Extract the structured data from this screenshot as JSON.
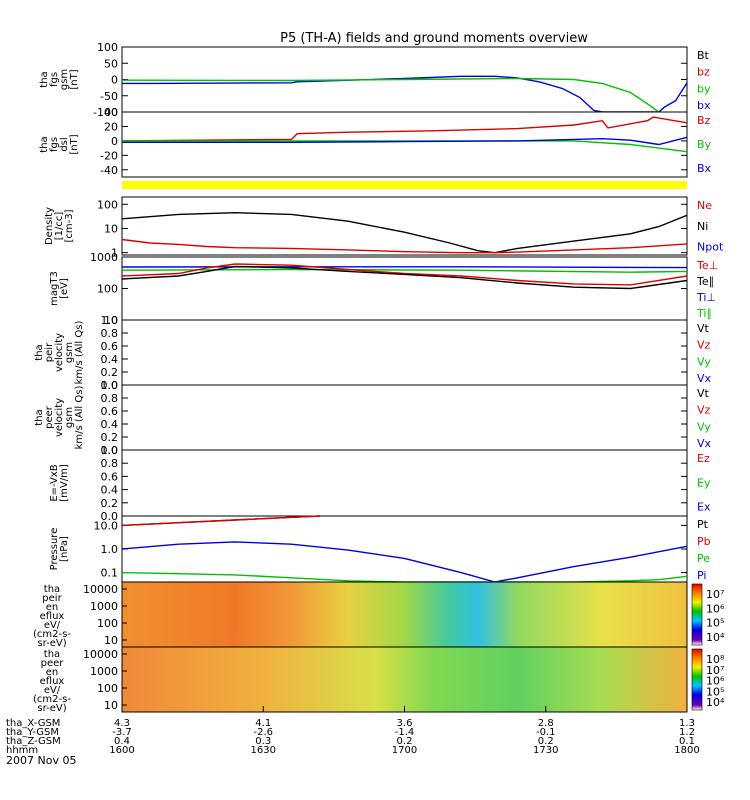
{
  "chart_data": {
    "type": "line",
    "title": "P5 (TH-A) fields and ground moments overview",
    "date": "2007 Nov 05",
    "panels": [
      {
        "id": "fgs_gsm",
        "ylabel": [
          "tha",
          "fgs",
          "gsm",
          "[nT]"
        ],
        "ylim": [
          -100,
          100
        ],
        "yticks": [
          -100,
          -50,
          0,
          50,
          100
        ],
        "legend": [
          {
            "label": "Bt",
            "color": "#000000"
          },
          {
            "label": "bz",
            "color": "#dd0000"
          },
          {
            "label": "by",
            "color": "#00c000"
          },
          {
            "label": "bx",
            "color": "#0000dd"
          }
        ],
        "series": [
          {
            "name": "bx",
            "color": "#0000dd",
            "x": [
              0,
              0.05,
              0.3,
              0.31,
              0.5,
              0.6,
              0.66,
              0.7,
              0.74,
              0.78,
              0.81,
              0.835,
              0.85,
              0.95,
              0.96,
              0.98,
              1.0
            ],
            "y": [
              -12,
              -12,
              -10,
              -7,
              3,
              10,
              10,
              5,
              -8,
              -28,
              -55,
              -95,
              -100,
              -100,
              -85,
              -65,
              -10
            ]
          },
          {
            "name": "by",
            "color": "#00c000",
            "x": [
              0,
              0.3,
              0.5,
              0.7,
              0.8,
              0.85,
              0.9,
              0.93,
              0.95
            ],
            "y": [
              -2,
              -3,
              0,
              3,
              0,
              -12,
              -40,
              -75,
              -100
            ]
          }
        ]
      },
      {
        "id": "fgs_dsl",
        "ylabel": [
          "tha",
          "fgs",
          "dsl",
          "[nT]"
        ],
        "ylim": [
          -50,
          40
        ],
        "yticks": [
          -40,
          -20,
          0,
          20,
          40
        ],
        "legend": [
          {
            "label": "Bz",
            "color": "#dd0000"
          },
          {
            "label": "By",
            "color": "#00c000"
          },
          {
            "label": "Bx",
            "color": "#0000dd"
          }
        ],
        "series": [
          {
            "name": "Bz",
            "color": "#dd0000",
            "x": [
              0,
              0.3,
              0.31,
              0.4,
              0.55,
              0.7,
              0.8,
              0.85,
              0.86,
              0.93,
              0.94,
              1.0
            ],
            "y": [
              0,
              2,
              10,
              12,
              14,
              17,
              22,
              28,
              18,
              28,
              33,
              25
            ]
          },
          {
            "name": "By",
            "color": "#00c000",
            "x": [
              0,
              0.3,
              0.5,
              0.7,
              0.8,
              0.9,
              0.95,
              1.0
            ],
            "y": [
              0,
              0,
              0,
              0,
              0,
              -5,
              -10,
              -15
            ]
          },
          {
            "name": "Bx",
            "color": "#0000dd",
            "x": [
              0,
              0.3,
              0.5,
              0.7,
              0.8,
              0.85,
              0.9,
              0.95,
              1.0
            ],
            "y": [
              -2,
              -2,
              -1,
              0,
              2,
              3,
              1,
              -5,
              5
            ]
          }
        ]
      },
      {
        "id": "density",
        "ylabel": [
          "Density",
          "[1/cc]",
          "[cm-3]"
        ],
        "ylim": [
          0.8,
          200
        ],
        "log": true,
        "ytick_labels": [
          "1",
          "10",
          "100"
        ],
        "ytick_values": [
          1,
          10,
          100
        ],
        "legend": [
          {
            "label": "Ne",
            "color": "#dd0000"
          },
          {
            "label": "Ni",
            "color": "#000000"
          },
          {
            "label": "Npot",
            "color": "#0000dd"
          }
        ],
        "series": [
          {
            "name": "Ni",
            "color": "#000000",
            "x": [
              0,
              0.1,
              0.2,
              0.3,
              0.4,
              0.5,
              0.58,
              0.63,
              0.66,
              0.7,
              0.8,
              0.9,
              0.95,
              1.0
            ],
            "y": [
              25,
              38,
              45,
              38,
              20,
              7,
              2.5,
              1.2,
              1.0,
              1.5,
              3,
              6,
              12,
              35
            ]
          },
          {
            "name": "Ne",
            "color": "#dd0000",
            "x": [
              0,
              0.05,
              0.1,
              0.15,
              0.2,
              0.3,
              0.4,
              0.5,
              0.6,
              0.66,
              0.7,
              0.8,
              0.9,
              1.0
            ],
            "y": [
              3.5,
              2.5,
              2.2,
              1.8,
              1.6,
              1.5,
              1.3,
              1.1,
              1.0,
              1.0,
              1.05,
              1.3,
              1.6,
              2.3
            ]
          }
        ]
      },
      {
        "id": "temperature",
        "ylabel": [
          "magT3",
          "[eV]"
        ],
        "ylim": [
          10,
          1000
        ],
        "log": true,
        "ytick_labels": [
          "10",
          "100",
          "1000"
        ],
        "ytick_values": [
          10,
          100,
          1000
        ],
        "legend": [
          {
            "label": "Te⊥",
            "color": "#dd0000"
          },
          {
            "label": "Te∥",
            "color": "#000000"
          },
          {
            "label": "Ti⊥",
            "color": "#0000dd"
          },
          {
            "label": "Ti∥",
            "color": "#00c000"
          }
        ],
        "series": [
          {
            "name": "Ti⊥",
            "color": "#0000dd",
            "x": [
              0,
              0.3,
              0.6,
              1.0
            ],
            "y": [
              480,
              490,
              490,
              460
            ]
          },
          {
            "name": "Ti∥",
            "color": "#00c000",
            "x": [
              0,
              0.3,
              0.6,
              0.9,
              1.0
            ],
            "y": [
              380,
              400,
              380,
              330,
              350
            ]
          },
          {
            "name": "Te⊥",
            "color": "#dd0000",
            "x": [
              0,
              0.1,
              0.15,
              0.2,
              0.3,
              0.4,
              0.5,
              0.6,
              0.7,
              0.8,
              0.9,
              1.0
            ],
            "y": [
              250,
              300,
              450,
              600,
              550,
              400,
              300,
              250,
              180,
              140,
              130,
              250
            ]
          },
          {
            "name": "Te∥",
            "color": "#000000",
            "x": [
              0,
              0.1,
              0.15,
              0.2,
              0.3,
              0.4,
              0.5,
              0.6,
              0.7,
              0.8,
              0.9,
              1.0
            ],
            "y": [
              200,
              250,
              350,
              500,
              450,
              350,
              280,
              220,
              150,
              110,
              100,
              180
            ]
          }
        ]
      },
      {
        "id": "peir_velocity",
        "ylabel": [
          "tha",
          "peir",
          "velocity",
          "gsm",
          "km/s (All Qs)"
        ],
        "ylim": [
          0,
          1
        ],
        "yticks": [
          0,
          0.2,
          0.4,
          0.6,
          0.8,
          1.0
        ],
        "ytick_labels": [
          "0.0",
          "0.2",
          "0.4",
          "0.6",
          "0.8",
          "1.0"
        ],
        "legend": [
          {
            "label": "Vt",
            "color": "#000000"
          },
          {
            "label": "Vz",
            "color": "#dd0000"
          },
          {
            "label": "Vy",
            "color": "#00c000"
          },
          {
            "label": "Vx",
            "color": "#0000dd"
          }
        ],
        "series": []
      },
      {
        "id": "peer_velocity",
        "ylabel": [
          "tha",
          "peer",
          "velocity",
          "gsm",
          "km/s (All Qs)"
        ],
        "ylim": [
          0,
          1
        ],
        "yticks": [
          0,
          0.2,
          0.4,
          0.6,
          0.8,
          1.0
        ],
        "ytick_labels": [
          "0.0",
          "0.2",
          "0.4",
          "0.6",
          "0.8",
          "1.0"
        ],
        "legend": [
          {
            "label": "Vt",
            "color": "#000000"
          },
          {
            "label": "Vz",
            "color": "#dd0000"
          },
          {
            "label": "Vy",
            "color": "#00c000"
          },
          {
            "label": "Vx",
            "color": "#0000dd"
          }
        ],
        "series": []
      },
      {
        "id": "efield",
        "ylabel": [
          "E=-VxB",
          "[mV/m]"
        ],
        "ylim": [
          0,
          1
        ],
        "yticks": [
          0,
          0.2,
          0.4,
          0.6,
          0.8,
          1.0
        ],
        "ytick_labels": [
          "0.0",
          "0.2",
          "0.4",
          "0.6",
          "0.8",
          "1.0"
        ],
        "legend": [
          {
            "label": "Ez",
            "color": "#dd0000"
          },
          {
            "label": "Ey",
            "color": "#00c000"
          },
          {
            "label": "Ex",
            "color": "#0000dd"
          }
        ],
        "series": []
      },
      {
        "id": "pressure",
        "ylabel": [
          "Pressure",
          "[nPa]"
        ],
        "ylim": [
          0.04,
          25
        ],
        "log": true,
        "ytick_labels": [
          "0.1",
          "1.0",
          "10.0"
        ],
        "ytick_values": [
          0.1,
          1,
          10
        ],
        "legend": [
          {
            "label": "Pt",
            "color": "#000000"
          },
          {
            "label": "Pb",
            "color": "#dd0000"
          },
          {
            "label": "Pe",
            "color": "#00c000"
          },
          {
            "label": "Pi",
            "color": "#0000dd"
          }
        ],
        "series": [
          {
            "name": "Pt",
            "color": "#000000",
            "x": [
              0,
              0.1,
              0.2,
              0.3,
              0.35
            ],
            "y": [
              10,
              13,
              17,
              22,
              25
            ]
          },
          {
            "name": "Pb",
            "color": "#dd0000",
            "x": [
              0,
              0.1,
              0.2,
              0.3,
              0.35
            ],
            "y": [
              10,
              13,
              17,
              22,
              25
            ]
          },
          {
            "name": "Pi",
            "color": "#0000dd",
            "x": [
              0,
              0.1,
              0.2,
              0.3,
              0.4,
              0.5,
              0.6,
              0.66,
              0.7,
              0.8,
              0.9,
              1.0
            ],
            "y": [
              1.0,
              1.6,
              2.0,
              1.6,
              0.9,
              0.4,
              0.1,
              0.04,
              0.06,
              0.18,
              0.45,
              1.3
            ]
          },
          {
            "name": "Pe",
            "color": "#00c000",
            "x": [
              0,
              0.1,
              0.2,
              0.3,
              0.4,
              0.5,
              0.6,
              0.7,
              0.8,
              0.9,
              0.95,
              1.0
            ],
            "y": [
              0.1,
              0.09,
              0.08,
              0.06,
              0.045,
              0.04,
              0.04,
              0.04,
              0.04,
              0.045,
              0.05,
              0.07
            ]
          }
        ]
      },
      {
        "id": "peir_en_eflux",
        "type": "heatmap",
        "ylabel": [
          "tha",
          "peir",
          "en",
          "eflux",
          "eV/",
          "(cm2-s-",
          "sr-eV)"
        ],
        "ytick_labels": [
          "10",
          "100",
          "1000",
          "10000"
        ],
        "colorbar_labels": [
          "10⁴",
          "10⁵",
          "10⁶",
          "10⁷"
        ],
        "color_stops": [
          {
            "x": 0.0,
            "color": "#f09030"
          },
          {
            "x": 0.2,
            "color": "#f07828"
          },
          {
            "x": 0.3,
            "color": "#f09838"
          },
          {
            "x": 0.4,
            "color": "#e8d040"
          },
          {
            "x": 0.5,
            "color": "#a0d848"
          },
          {
            "x": 0.58,
            "color": "#40c8a0"
          },
          {
            "x": 0.63,
            "color": "#30c0e0"
          },
          {
            "x": 0.7,
            "color": "#90d860"
          },
          {
            "x": 0.85,
            "color": "#e8e048"
          },
          {
            "x": 1.0,
            "color": "#f0c040"
          }
        ]
      },
      {
        "id": "peer_en_eflux",
        "type": "heatmap",
        "ylabel": [
          "tha",
          "peer",
          "en",
          "eflux",
          "eV/",
          "(cm2-s-",
          "sr-eV)"
        ],
        "ytick_labels": [
          "10",
          "100",
          "1000",
          "10000"
        ],
        "colorbar_labels": [
          "10⁴",
          "10⁵",
          "10⁶",
          "10⁷",
          "10⁸"
        ],
        "color_stops": [
          {
            "x": 0.0,
            "color": "#f08838"
          },
          {
            "x": 0.25,
            "color": "#f0b040"
          },
          {
            "x": 0.45,
            "color": "#d8e048"
          },
          {
            "x": 0.55,
            "color": "#80d850"
          },
          {
            "x": 0.7,
            "color": "#60d060"
          },
          {
            "x": 0.85,
            "color": "#a8dc50"
          },
          {
            "x": 1.0,
            "color": "#f0b040"
          }
        ]
      }
    ],
    "xaxis": {
      "row_labels": [
        "tha_X-GSM",
        "tha_Y-GSM",
        "tha_Z-GSM",
        "hhmm"
      ],
      "ticks": [
        {
          "x": 0.0,
          "values": [
            "4.3",
            "-3.7",
            "0.4",
            "1600"
          ]
        },
        {
          "x": 0.25,
          "values": [
            "4.1",
            "-2.6",
            "0.3",
            "1630"
          ]
        },
        {
          "x": 0.5,
          "values": [
            "3.6",
            "-1.4",
            "0.2",
            "1700"
          ]
        },
        {
          "x": 0.75,
          "values": [
            "2.8",
            "-0.1",
            "0.2",
            "1730"
          ]
        },
        {
          "x": 1.0,
          "values": [
            "1.3",
            "1.2",
            "0.1",
            "1800"
          ]
        }
      ]
    }
  }
}
